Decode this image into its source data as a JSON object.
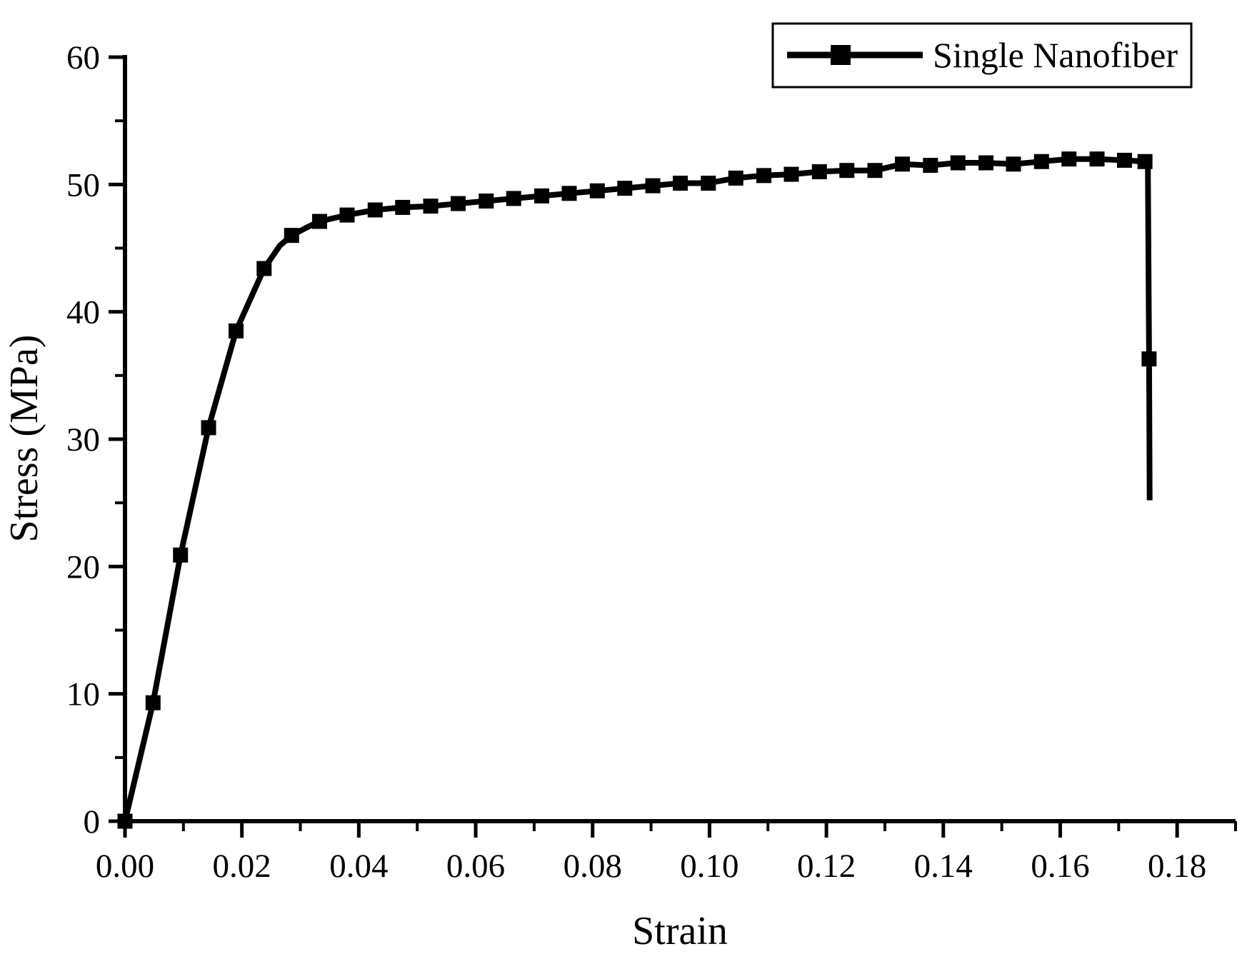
{
  "figure": {
    "background_color": "#ffffff",
    "ink_color": "#000000"
  },
  "chart_data": {
    "type": "line",
    "title": "",
    "xlabel": "Strain",
    "ylabel": "Stress (MPa)",
    "xlim": [
      0,
      0.19
    ],
    "ylim": [
      0,
      60
    ],
    "grid": false,
    "x_tick_labels": [
      "0.00",
      "0.02",
      "0.04",
      "0.06",
      "0.08",
      "0.10",
      "0.12",
      "0.14",
      "0.16",
      "0.18"
    ],
    "x_tick_values": [
      0.0,
      0.02,
      0.04,
      0.06,
      0.08,
      0.1,
      0.12,
      0.14,
      0.16,
      0.18
    ],
    "x_minor_tick_values": [
      0.01,
      0.03,
      0.05,
      0.07,
      0.09,
      0.11,
      0.13,
      0.15,
      0.17,
      0.19
    ],
    "y_tick_labels": [
      "0",
      "10",
      "20",
      "30",
      "40",
      "50",
      "60"
    ],
    "y_tick_values": [
      0,
      10,
      20,
      30,
      40,
      50,
      60
    ],
    "y_minor_tick_values": [
      5,
      15,
      25,
      35,
      45,
      55
    ],
    "legend": {
      "position": "top-right",
      "entries": [
        {
          "label": "Single Nanofiber",
          "line": "solid",
          "marker": "filled-square",
          "color": "#000000"
        }
      ]
    },
    "point_format": [
      "strain",
      "stress_MPa",
      "has_marker"
    ],
    "series": [
      {
        "name": "Single Nanofiber",
        "color": "#000000",
        "marker": "filled-square",
        "points": [
          [
            0.0,
            0.0,
            1
          ],
          [
            0.0048,
            9.3,
            1
          ],
          [
            0.0095,
            20.9,
            1
          ],
          [
            0.0143,
            30.9,
            1
          ],
          [
            0.019,
            38.5,
            1
          ],
          [
            0.0238,
            43.4,
            1
          ],
          [
            0.0265,
            45.2,
            0
          ],
          [
            0.0285,
            46.0,
            1
          ],
          [
            0.031,
            46.6,
            0
          ],
          [
            0.0333,
            47.1,
            1
          ],
          [
            0.038,
            47.6,
            1
          ],
          [
            0.0428,
            48.0,
            1
          ],
          [
            0.0475,
            48.2,
            1
          ],
          [
            0.0523,
            48.3,
            1
          ],
          [
            0.057,
            48.5,
            1
          ],
          [
            0.0618,
            48.7,
            1
          ],
          [
            0.0665,
            48.9,
            1
          ],
          [
            0.0713,
            49.1,
            1
          ],
          [
            0.076,
            49.3,
            1
          ],
          [
            0.0808,
            49.5,
            1
          ],
          [
            0.0855,
            49.7,
            1
          ],
          [
            0.0903,
            49.9,
            1
          ],
          [
            0.095,
            50.1,
            1
          ],
          [
            0.0998,
            50.1,
            1
          ],
          [
            0.1045,
            50.5,
            1
          ],
          [
            0.1093,
            50.7,
            1
          ],
          [
            0.114,
            50.8,
            1
          ],
          [
            0.1188,
            51.0,
            1
          ],
          [
            0.1235,
            51.1,
            1
          ],
          [
            0.1283,
            51.1,
            1
          ],
          [
            0.133,
            51.6,
            1
          ],
          [
            0.1378,
            51.5,
            1
          ],
          [
            0.1425,
            51.7,
            1
          ],
          [
            0.1473,
            51.7,
            1
          ],
          [
            0.152,
            51.6,
            1
          ],
          [
            0.1568,
            51.8,
            1
          ],
          [
            0.1615,
            52.0,
            1
          ],
          [
            0.1663,
            52.0,
            1
          ],
          [
            0.171,
            51.9,
            1
          ],
          [
            0.1745,
            51.8,
            1
          ],
          [
            0.175,
            51.6,
            0
          ],
          [
            0.1752,
            36.3,
            1
          ],
          [
            0.1753,
            25.2,
            0
          ]
        ]
      }
    ]
  }
}
